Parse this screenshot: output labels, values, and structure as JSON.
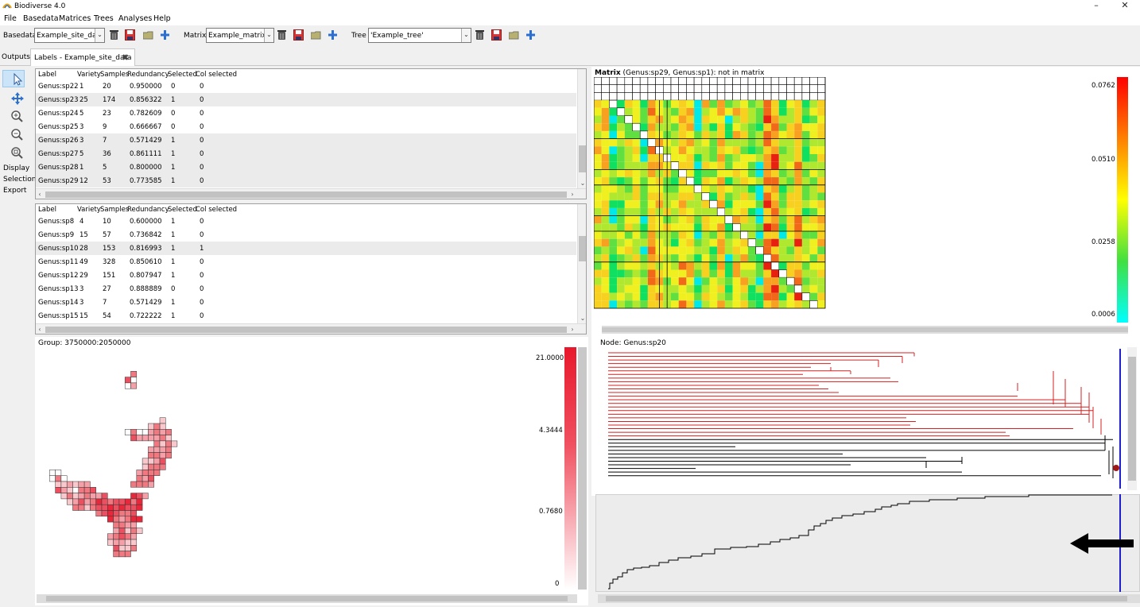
{
  "app": {
    "title": "Biodiverse 4.0",
    "window_controls": [
      "minimize-icon",
      "restore-icon",
      "close-icon"
    ]
  },
  "menu": [
    "File",
    "Basedata",
    "Matrices",
    "Trees",
    "Analyses",
    "Help"
  ],
  "toolbar": {
    "basedata_label": "Basedata",
    "basedata_value": "Example_site_data",
    "matrix_label": "Matrix",
    "matrix_value": "Example_matrix",
    "tree_label": "Tree",
    "tree_value": "'Example_tree'"
  },
  "tabs": [
    {
      "label": "Outputs",
      "active": false
    },
    {
      "label": "Labels - Example_site_data",
      "active": true
    }
  ],
  "tools": {
    "icons": [
      "select-pointer-icon",
      "pan-icon",
      "zoom-in-icon",
      "zoom-out-icon",
      "zoom-fit-icon"
    ],
    "words": [
      "Display",
      "Selection",
      "Export"
    ]
  },
  "table_headers": [
    "Label",
    "Variety",
    "Samples",
    "Redundancy",
    "Selected",
    "Col selected"
  ],
  "table1_rows": [
    {
      "label": "Genus:sp22",
      "variety": "1",
      "samples": "20",
      "redundancy": "0.950000",
      "selected": "0",
      "col_selected": "0"
    },
    {
      "label": "Genus:sp23",
      "variety": "25",
      "samples": "174",
      "redundancy": "0.856322",
      "selected": "1",
      "col_selected": "0"
    },
    {
      "label": "Genus:sp24",
      "variety": "5",
      "samples": "23",
      "redundancy": "0.782609",
      "selected": "0",
      "col_selected": "0"
    },
    {
      "label": "Genus:sp25",
      "variety": "3",
      "samples": "9",
      "redundancy": "0.666667",
      "selected": "0",
      "col_selected": "0"
    },
    {
      "label": "Genus:sp26",
      "variety": "3",
      "samples": "7",
      "redundancy": "0.571429",
      "selected": "1",
      "col_selected": "0"
    },
    {
      "label": "Genus:sp27",
      "variety": "5",
      "samples": "36",
      "redundancy": "0.861111",
      "selected": "1",
      "col_selected": "0"
    },
    {
      "label": "Genus:sp28",
      "variety": "1",
      "samples": "5",
      "redundancy": "0.800000",
      "selected": "1",
      "col_selected": "0"
    },
    {
      "label": "Genus:sp29",
      "variety": "12",
      "samples": "53",
      "redundancy": "0.773585",
      "selected": "1",
      "col_selected": "0"
    }
  ],
  "table2_rows": [
    {
      "label": "Genus:sp8",
      "variety": "4",
      "samples": "10",
      "redundancy": "0.600000",
      "selected": "1",
      "col_selected": "0"
    },
    {
      "label": "Genus:sp9",
      "variety": "15",
      "samples": "57",
      "redundancy": "0.736842",
      "selected": "1",
      "col_selected": "0"
    },
    {
      "label": "Genus:sp10",
      "variety": "28",
      "samples": "153",
      "redundancy": "0.816993",
      "selected": "1",
      "col_selected": "1"
    },
    {
      "label": "Genus:sp11",
      "variety": "49",
      "samples": "328",
      "redundancy": "0.850610",
      "selected": "1",
      "col_selected": "0"
    },
    {
      "label": "Genus:sp12",
      "variety": "29",
      "samples": "151",
      "redundancy": "0.807947",
      "selected": "1",
      "col_selected": "0"
    },
    {
      "label": "Genus:sp13",
      "variety": "3",
      "samples": "27",
      "redundancy": "0.888889",
      "selected": "0",
      "col_selected": "0"
    },
    {
      "label": "Genus:sp14",
      "variety": "3",
      "samples": "7",
      "redundancy": "0.571429",
      "selected": "1",
      "col_selected": "0"
    },
    {
      "label": "Genus:sp15",
      "variety": "15",
      "samples": "54",
      "redundancy": "0.722222",
      "selected": "1",
      "col_selected": "0"
    }
  ],
  "matrix_panel": {
    "title_bold": "Matrix",
    "title_rest": " (Genus:sp29, Genus:sp1): not in matrix",
    "legend": [
      "0.0762",
      "0.0510",
      "0.0258",
      "0.0006"
    ]
  },
  "map_panel": {
    "title": "Group: 3750000:2050000",
    "legend": [
      "21.0000",
      "4.3444",
      "0.7680",
      "0"
    ]
  },
  "tree_panel": {
    "title": "Node: Genus:sp20"
  },
  "colors": {
    "selected_branch": "#d42020",
    "unselected_branch": "#000000",
    "highlight_line": "#1f1fd0",
    "map_cell_high": "#e8283a",
    "map_cell_low": "#f8c8cc",
    "node_marker": "#a01818"
  }
}
